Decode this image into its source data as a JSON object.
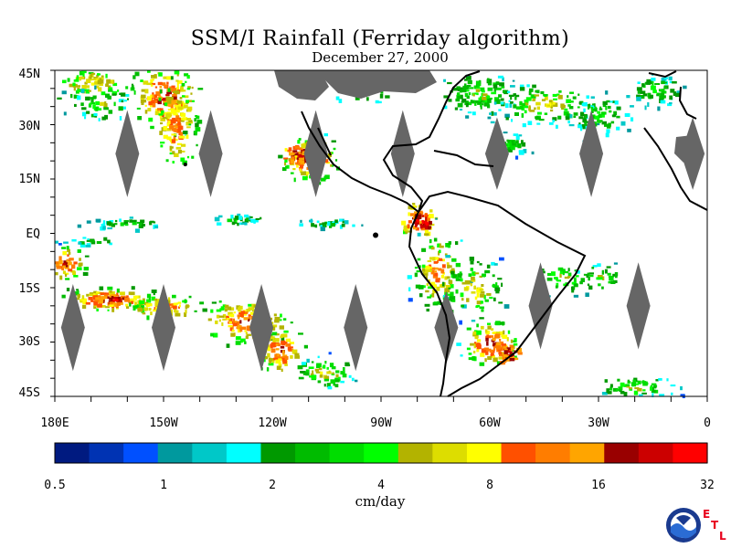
{
  "title": "SSM/I Rainfall (Ferriday algorithm)",
  "date": "December 27, 2000",
  "lat_labels": [
    "45N",
    "30N",
    "15N",
    "EQ",
    "15S",
    "30S",
    "45S"
  ],
  "lon_labels": [
    "180E",
    "150W",
    "120W",
    "90W",
    "60W",
    "30W",
    "0"
  ],
  "colorbar": {
    "tick_labels": [
      "0.5",
      "1",
      "2",
      "4",
      "8",
      "16",
      "32"
    ],
    "units": "cm/day",
    "colors": [
      "#001a80",
      "#0033b3",
      "#0050ff",
      "#00999e",
      "#00c8c8",
      "#00ffff",
      "#009900",
      "#00bb00",
      "#00dd00",
      "#00ff00",
      "#b3b300",
      "#dddd00",
      "#ffff00",
      "#ff5000",
      "#ff7d00",
      "#ffa500",
      "#990000",
      "#cc0000",
      "#ff0000"
    ]
  },
  "map": {
    "type": "heatmap",
    "lon_range": [
      -180,
      0
    ],
    "lat_range": [
      -45,
      45
    ],
    "no_data_color": "#666666",
    "land_outline_color": "#000000"
  },
  "logo": {
    "org": "NOAA",
    "badge_letters": [
      "E",
      "T",
      "L"
    ],
    "icon": "noaa-logo-icon"
  }
}
